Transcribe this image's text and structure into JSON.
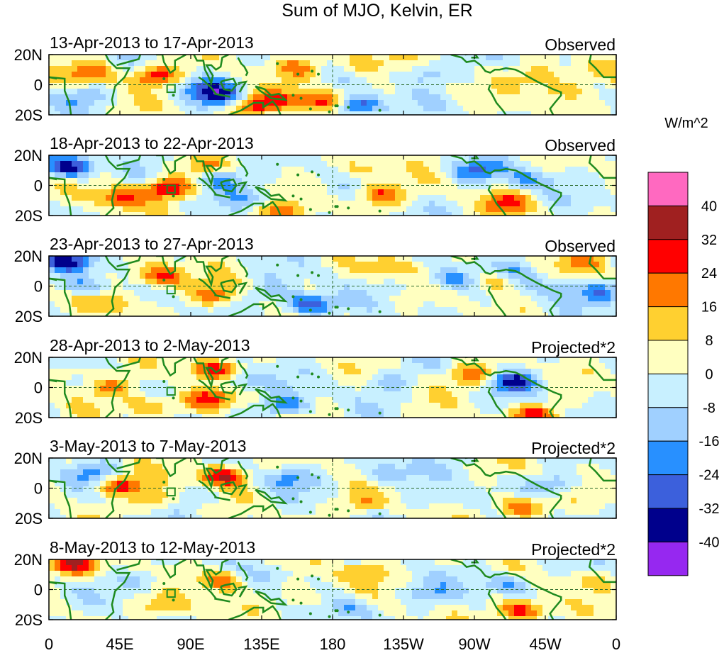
{
  "chart_data": {
    "type": "heatmap",
    "title": "Sum of MJO, Kelvin, ER",
    "units": "W/m^2",
    "x_ticks": [
      "0",
      "45E",
      "90E",
      "135E",
      "180",
      "135W",
      "90W",
      "45W",
      "0"
    ],
    "x_range_deg_east": [
      0,
      360
    ],
    "y_ticks": [
      "20N",
      "0",
      "20S"
    ],
    "y_range_deg": [
      -20,
      20
    ],
    "reference_lines": {
      "equator": 0,
      "dateline": 180
    },
    "box_marker": {
      "lon": [
        75,
        80
      ],
      "lat": [
        -5,
        0
      ]
    },
    "colorbar": {
      "boundaries": [
        "40",
        "32",
        "24",
        "16",
        "8",
        "0",
        "-8",
        "-16",
        "-24",
        "-32",
        "-40"
      ],
      "colors": [
        "#ff69c0",
        "#a02020",
        "#ff0000",
        "#ff7800",
        "#ffd030",
        "#ffffc0",
        "#c8f0ff",
        "#a0d0ff",
        "#2890ff",
        "#3c60dc",
        "#00008c",
        "#9628f0"
      ]
    },
    "panels": [
      {
        "date_range": "13-Apr-2013 to 17-Apr-2013",
        "label": "Observed",
        "anomalies": [
          {
            "lon": 28,
            "lat": 8,
            "v": 20
          },
          {
            "lon": 68,
            "lat": 6,
            "v": 30
          },
          {
            "lon": 98,
            "lat": -2,
            "v": -20
          },
          {
            "lon": 110,
            "lat": -8,
            "v": -25
          },
          {
            "lon": 130,
            "lat": -14,
            "v": 30
          },
          {
            "lon": 150,
            "lat": -10,
            "v": 16
          },
          {
            "lon": 175,
            "lat": -12,
            "v": 28
          },
          {
            "lon": 195,
            "lat": -14,
            "v": -36
          },
          {
            "lon": 160,
            "lat": 12,
            "v": 16
          },
          {
            "lon": 200,
            "lat": 14,
            "v": 20
          },
          {
            "lon": 240,
            "lat": 8,
            "v": -16
          },
          {
            "lon": 310,
            "lat": 6,
            "v": 16
          },
          {
            "lon": 325,
            "lat": -4,
            "v": 20
          },
          {
            "lon": 20,
            "lat": -8,
            "v": -16
          },
          {
            "lon": 345,
            "lat": 10,
            "v": 12
          }
        ]
      },
      {
        "date_range": "18-Apr-2013 to 22-Apr-2013",
        "label": "Observed",
        "anomalies": [
          {
            "lon": 12,
            "lat": 12,
            "v": -38
          },
          {
            "lon": 45,
            "lat": -8,
            "v": 26
          },
          {
            "lon": 75,
            "lat": -2,
            "v": 34
          },
          {
            "lon": 110,
            "lat": 4,
            "v": -22
          },
          {
            "lon": 130,
            "lat": -8,
            "v": -16
          },
          {
            "lon": 145,
            "lat": -18,
            "v": 20
          },
          {
            "lon": 210,
            "lat": -6,
            "v": 26
          },
          {
            "lon": 200,
            "lat": 10,
            "v": 12
          },
          {
            "lon": 270,
            "lat": 10,
            "v": -24
          },
          {
            "lon": 290,
            "lat": -12,
            "v": 22
          },
          {
            "lon": 305,
            "lat": 4,
            "v": -16
          },
          {
            "lon": 100,
            "lat": 12,
            "v": 10
          }
        ]
      },
      {
        "date_range": "23-Apr-2013 to 27-Apr-2013",
        "label": "Observed",
        "anomalies": [
          {
            "lon": 12,
            "lat": 16,
            "v": -30
          },
          {
            "lon": 20,
            "lat": 0,
            "v": -20
          },
          {
            "lon": 70,
            "lat": 6,
            "v": 32
          },
          {
            "lon": 105,
            "lat": -6,
            "v": 20
          },
          {
            "lon": 140,
            "lat": -4,
            "v": -12
          },
          {
            "lon": 165,
            "lat": -12,
            "v": -36
          },
          {
            "lon": 215,
            "lat": 12,
            "v": 14
          },
          {
            "lon": 255,
            "lat": 4,
            "v": -24
          },
          {
            "lon": 285,
            "lat": 4,
            "v": 24
          },
          {
            "lon": 295,
            "lat": 8,
            "v": -16
          },
          {
            "lon": 320,
            "lat": 0,
            "v": -12
          },
          {
            "lon": 350,
            "lat": -4,
            "v": -20
          },
          {
            "lon": 40,
            "lat": -12,
            "v": 16
          },
          {
            "lon": 340,
            "lat": 16,
            "v": 14
          }
        ]
      },
      {
        "date_range": "28-Apr-2013 to 2-May-2013",
        "label": "Projected*2",
        "anomalies": [
          {
            "lon": 105,
            "lat": 12,
            "v": 28
          },
          {
            "lon": 100,
            "lat": -8,
            "v": 26
          },
          {
            "lon": 65,
            "lat": -12,
            "v": 20
          },
          {
            "lon": 40,
            "lat": 0,
            "v": 18
          },
          {
            "lon": 150,
            "lat": -12,
            "v": -24
          },
          {
            "lon": 120,
            "lat": 4,
            "v": -16
          },
          {
            "lon": 270,
            "lat": 8,
            "v": 24
          },
          {
            "lon": 295,
            "lat": 4,
            "v": -30
          },
          {
            "lon": 310,
            "lat": -18,
            "v": 26
          },
          {
            "lon": 215,
            "lat": 4,
            "v": -12
          },
          {
            "lon": 10,
            "lat": 10,
            "v": 12
          }
        ]
      },
      {
        "date_range": "3-May-2013 to 7-May-2013",
        "label": "Projected*2",
        "anomalies": [
          {
            "lon": 110,
            "lat": 8,
            "v": 34
          },
          {
            "lon": 45,
            "lat": 2,
            "v": 28
          },
          {
            "lon": 70,
            "lat": -8,
            "v": 18
          },
          {
            "lon": 30,
            "lat": 10,
            "v": -16
          },
          {
            "lon": 95,
            "lat": -6,
            "v": -12
          },
          {
            "lon": 150,
            "lat": 6,
            "v": -16
          },
          {
            "lon": 215,
            "lat": 10,
            "v": -20
          },
          {
            "lon": 200,
            "lat": -10,
            "v": 16
          },
          {
            "lon": 300,
            "lat": -12,
            "v": 30
          },
          {
            "lon": 320,
            "lat": 2,
            "v": -16
          },
          {
            "lon": 255,
            "lat": -8,
            "v": -12
          }
        ]
      },
      {
        "date_range": "8-May-2013 to 12-May-2013",
        "label": "Projected*2",
        "anomalies": [
          {
            "lon": 15,
            "lat": 16,
            "v": 30
          },
          {
            "lon": 110,
            "lat": 6,
            "v": 28
          },
          {
            "lon": 75,
            "lat": -12,
            "v": 18
          },
          {
            "lon": 60,
            "lat": 6,
            "v": -14
          },
          {
            "lon": 140,
            "lat": 10,
            "v": -12
          },
          {
            "lon": 160,
            "lat": -6,
            "v": 12
          },
          {
            "lon": 200,
            "lat": 12,
            "v": 18
          },
          {
            "lon": 195,
            "lat": -12,
            "v": -16
          },
          {
            "lon": 240,
            "lat": -2,
            "v": -12
          },
          {
            "lon": 300,
            "lat": -14,
            "v": 34
          },
          {
            "lon": 290,
            "lat": 4,
            "v": -20
          },
          {
            "lon": 340,
            "lat": 6,
            "v": 12
          }
        ]
      }
    ]
  }
}
